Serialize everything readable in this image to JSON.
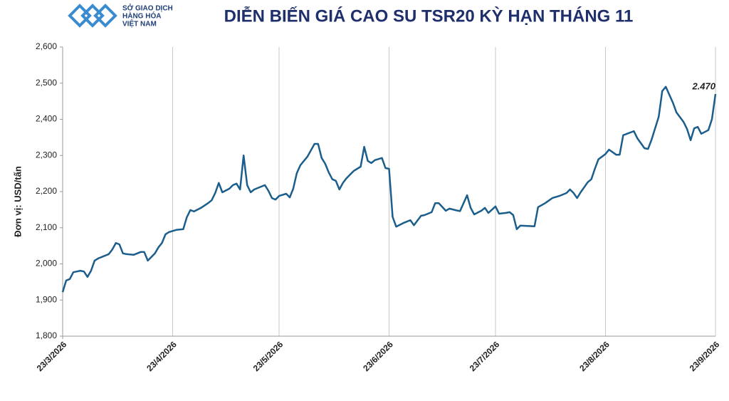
{
  "logo": {
    "lines": [
      "SỞ GIAO DỊCH",
      "HÀNG HÓA",
      "VIỆT NAM"
    ]
  },
  "chart_data": {
    "type": "line",
    "title": "DIỄN BIẾN GIÁ CAO SU TSR20 KỲ HẠN THÁNG 11",
    "y_label": "Đơn vị: USD/tấn",
    "color": "#1b5e8c",
    "grid": "vertical",
    "xlim": [
      "23/3/2026",
      "23/9/2026"
    ],
    "xticks": [
      "23/3/2026",
      "23/4/2026",
      "23/5/2026",
      "23/6/2026",
      "23/7/2026",
      "23/8/2026",
      "23/9/2026"
    ],
    "ylim": [
      1800,
      2600
    ],
    "yticks": [
      {
        "value": 1800,
        "label": "1,800"
      },
      {
        "value": 1900,
        "label": "1,900"
      },
      {
        "value": 2000,
        "label": "2,000"
      },
      {
        "value": 2100,
        "label": "2,100"
      },
      {
        "value": 2200,
        "label": "2,200"
      },
      {
        "value": 2300,
        "label": "2,300"
      },
      {
        "value": 2400,
        "label": "2,400"
      },
      {
        "value": 2500,
        "label": "2,500"
      },
      {
        "value": 2600,
        "label": "2,600"
      }
    ],
    "x": [
      "23/3/2026",
      "24/3/2026",
      "25/3/2026",
      "26/3/2026",
      "27/3/2026",
      "28/3/2026",
      "29/3/2026",
      "30/3/2026",
      "31/3/2026",
      "1/4/2026",
      "2/4/2026",
      "5/4/2026",
      "6/4/2026",
      "7/4/2026",
      "8/4/2026",
      "9/4/2026",
      "10/4/2026",
      "12/4/2026",
      "14/4/2026",
      "15/4/2026",
      "16/4/2026",
      "18/4/2026",
      "19/4/2026",
      "20/4/2026",
      "21/4/2026",
      "22/4/2026",
      "24/4/2026",
      "26/4/2026",
      "27/4/2026",
      "28/4/2026",
      "29/4/2026",
      "1/5/2026",
      "3/5/2026",
      "4/5/2026",
      "5/5/2026",
      "6/5/2026",
      "7/5/2026",
      "9/5/2026",
      "10/5/2026",
      "11/5/2026",
      "12/5/2026",
      "13/5/2026",
      "14/5/2026",
      "15/5/2026",
      "16/5/2026",
      "19/5/2026",
      "20/5/2026",
      "21/5/2026",
      "22/5/2026",
      "23/5/2026",
      "25/5/2026",
      "26/5/2026",
      "27/5/2026",
      "28/5/2026",
      "29/5/2026",
      "31/5/2026",
      "2/6/2026",
      "3/6/2026",
      "4/6/2026",
      "5/6/2026",
      "6/6/2026",
      "7/6/2026",
      "8/6/2026",
      "9/6/2026",
      "10/6/2026",
      "11/6/2026",
      "13/6/2026",
      "15/6/2026",
      "16/6/2026",
      "17/6/2026",
      "18/6/2026",
      "19/6/2026",
      "21/6/2026",
      "22/6/2026",
      "23/6/2026",
      "24/6/2026",
      "25/6/2026",
      "27/6/2026",
      "29/6/2026",
      "30/6/2026",
      "2/7/2026",
      "3/7/2026",
      "5/7/2026",
      "6/7/2026",
      "7/7/2026",
      "9/7/2026",
      "10/7/2026",
      "12/7/2026",
      "13/7/2026",
      "15/7/2026",
      "16/7/2026",
      "17/7/2026",
      "19/7/2026",
      "20/7/2026",
      "21/7/2026",
      "23/7/2026",
      "24/7/2026",
      "26/7/2026",
      "27/7/2026",
      "28/7/2026",
      "29/7/2026",
      "30/7/2026",
      "3/8/2026",
      "4/8/2026",
      "6/8/2026",
      "8/8/2026",
      "10/8/2026",
      "12/8/2026",
      "13/8/2026",
      "14/8/2026",
      "15/8/2026",
      "16/8/2026",
      "18/8/2026",
      "19/8/2026",
      "20/8/2026",
      "21/8/2026",
      "23/8/2026",
      "24/8/2026",
      "26/8/2026",
      "27/8/2026",
      "28/8/2026",
      "31/8/2026",
      "1/9/2026",
      "3/9/2026",
      "4/9/2026",
      "5/9/2026",
      "7/9/2026",
      "8/9/2026",
      "9/9/2026",
      "11/9/2026",
      "12/9/2026",
      "14/9/2026",
      "15/9/2026",
      "16/9/2026",
      "17/9/2026",
      "18/9/2026",
      "19/9/2026",
      "21/9/2026",
      "22/9/2026",
      "23/9/2026"
    ],
    "values": [
      1922,
      1954,
      1958,
      1977,
      1979,
      1981,
      1979,
      1964,
      1981,
      2009,
      2015,
      2027,
      2040,
      2058,
      2054,
      2029,
      2027,
      2025,
      2033,
      2033,
      2009,
      2029,
      2046,
      2058,
      2082,
      2088,
      2094,
      2096,
      2129,
      2149,
      2145,
      2155,
      2168,
      2176,
      2196,
      2224,
      2198,
      2208,
      2218,
      2222,
      2206,
      2300,
      2218,
      2198,
      2206,
      2218,
      2202,
      2182,
      2178,
      2188,
      2194,
      2184,
      2208,
      2251,
      2273,
      2297,
      2332,
      2332,
      2293,
      2277,
      2253,
      2234,
      2230,
      2206,
      2224,
      2237,
      2257,
      2269,
      2324,
      2285,
      2279,
      2287,
      2293,
      2265,
      2263,
      2130,
      2103,
      2113,
      2121,
      2107,
      2133,
      2135,
      2143,
      2168,
      2168,
      2147,
      2153,
      2148,
      2146,
      2190,
      2155,
      2137,
      2147,
      2155,
      2141,
      2159,
      2139,
      2141,
      2143,
      2135,
      2096,
      2106,
      2104,
      2157,
      2168,
      2182,
      2188,
      2196,
      2206,
      2196,
      2182,
      2198,
      2226,
      2234,
      2263,
      2289,
      2304,
      2316,
      2302,
      2302,
      2356,
      2367,
      2347,
      2320,
      2318,
      2344,
      2407,
      2478,
      2490,
      2446,
      2419,
      2393,
      2373,
      2342,
      2375,
      2379,
      2360,
      2370,
      2400,
      2470
    ],
    "last_label": "2.470"
  }
}
